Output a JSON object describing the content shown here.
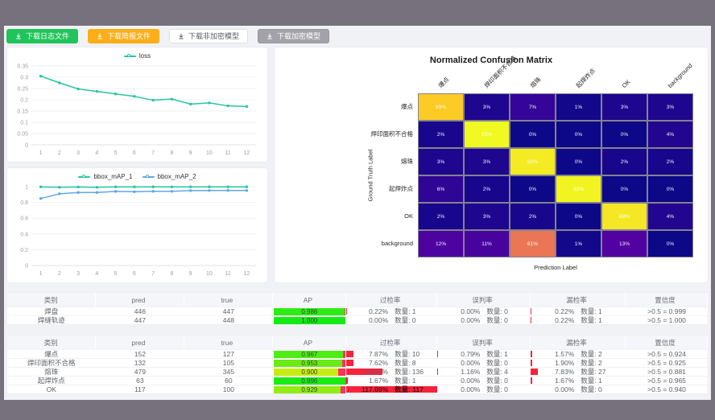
{
  "toolbar": {
    "buttons": [
      {
        "label": "下载日志文件",
        "style": "green"
      },
      {
        "label": "下载简报文件",
        "style": "orange"
      },
      {
        "label": "下载非加密模型",
        "style": "plain"
      },
      {
        "label": "下载加密模型",
        "style": "gray"
      }
    ]
  },
  "colors": {
    "teal": "#27c5a1",
    "blue": "#5fa8e5",
    "green_button": "#21c45a",
    "orange_button": "#fbae17",
    "gray_button": "#a3a2aa",
    "rate_bar_red": "#f8223d",
    "ap_remainder_red": "#ff3355"
  },
  "chart_data": [
    {
      "type": "line",
      "legend": [
        "loss"
      ],
      "x": [
        1,
        2,
        3,
        4,
        5,
        6,
        7,
        8,
        9,
        10,
        11,
        12
      ],
      "series": [
        {
          "name": "loss",
          "color": "#27c5a1",
          "values": [
            0.305,
            0.275,
            0.248,
            0.237,
            0.226,
            0.215,
            0.198,
            0.203,
            0.181,
            0.186,
            0.173,
            0.17
          ]
        }
      ],
      "ylim": [
        0,
        0.35
      ],
      "yticks": [
        0,
        0.05,
        0.1,
        0.15,
        0.2,
        0.25,
        0.3,
        0.35
      ],
      "grid": true,
      "legend_position": "top"
    },
    {
      "type": "line",
      "legend": [
        "bbox_mAP_1",
        "bbox_mAP_2"
      ],
      "x": [
        1,
        2,
        3,
        4,
        5,
        6,
        7,
        8,
        9,
        10,
        11,
        12
      ],
      "series": [
        {
          "name": "bbox_mAP_1",
          "color": "#27c5a1",
          "values": [
            0.998,
            0.992,
            0.996,
            0.992,
            0.997,
            0.998,
            0.998,
            0.997,
            0.998,
            0.998,
            0.998,
            0.998
          ]
        },
        {
          "name": "bbox_mAP_2",
          "color": "#5fa8e5",
          "values": [
            0.85,
            0.91,
            0.926,
            0.926,
            0.94,
            0.936,
            0.941,
            0.941,
            0.95,
            0.951,
            0.952,
            0.951
          ]
        }
      ],
      "ylim": [
        0,
        1
      ],
      "yticks": [
        0,
        0.2,
        0.4,
        0.6,
        0.8,
        1
      ],
      "grid": true,
      "legend_position": "top"
    },
    {
      "type": "heatmap",
      "title": "Normalized Confusion Matrix",
      "xlabel": "Prediction Label",
      "ylabel": "Ground Truth Label",
      "labels": [
        "爆点",
        "焊印面积不合格",
        "熔珠",
        "起焊炸点",
        "OK",
        "background"
      ],
      "matrix": [
        [
          83,
          3,
          7,
          1,
          3,
          3
        ],
        [
          2,
          93,
          0,
          0,
          0,
          4
        ],
        [
          3,
          3,
          90,
          0,
          2,
          2
        ],
        [
          6,
          2,
          0,
          92,
          0,
          0
        ],
        [
          2,
          3,
          2,
          0,
          89,
          4
        ],
        [
          12,
          11,
          61,
          1,
          13,
          0
        ]
      ],
      "vmax": 93,
      "colorbar_ticks": [
        0,
        20,
        40,
        60,
        80
      ],
      "colormap": "plasma"
    }
  ],
  "tables": {
    "headers": [
      "类别",
      "pred",
      "true",
      "AP",
      "过检率",
      "误判率",
      "漏检率",
      "置信度"
    ],
    "sortable": [
      false,
      true,
      true,
      true,
      true,
      true,
      true,
      true
    ],
    "count_label": "数量",
    "table1": {
      "rows": [
        {
          "category": "焊盘",
          "pred": "446",
          "true": "447",
          "ap": "0.986",
          "over_rate": {
            "pct": "0.22%",
            "count": "1"
          },
          "misjudge_rate": {
            "pct": "0.00%",
            "count": "0"
          },
          "miss_rate": {
            "pct": "0.22%",
            "count": "1"
          },
          "confidence": ">0.5 = 0.999"
        },
        {
          "category": "焊缝轨迹",
          "pred": "447",
          "true": "448",
          "ap": "1.000",
          "over_rate": {
            "pct": "0.00%",
            "count": "0"
          },
          "misjudge_rate": {
            "pct": "0.00%",
            "count": "0"
          },
          "miss_rate": {
            "pct": "0.22%",
            "count": "1"
          },
          "confidence": ">0.5 = 1.000"
        }
      ]
    },
    "table2": {
      "rows": [
        {
          "category": "爆点",
          "pred": "152",
          "true": "127",
          "ap": "0.967",
          "over_rate": {
            "pct": "7.87%",
            "count": "10"
          },
          "misjudge_rate": {
            "pct": "0.79%",
            "count": "1"
          },
          "miss_rate": {
            "pct": "1.57%",
            "count": "2"
          },
          "confidence": ">0.5 = 0.924"
        },
        {
          "category": "焊印面积不合格",
          "pred": "132",
          "true": "105",
          "ap": "0.953",
          "over_rate": {
            "pct": "7.62%",
            "count": "8"
          },
          "misjudge_rate": {
            "pct": "0.00%",
            "count": "0"
          },
          "miss_rate": {
            "pct": "1.90%",
            "count": "2"
          },
          "confidence": ">0.5 = 0.925"
        },
        {
          "category": "熔珠",
          "pred": "479",
          "true": "345",
          "ap": "0.900",
          "over_rate": {
            "pct": "39.42%",
            "count": "136"
          },
          "misjudge_rate": {
            "pct": "1.16%",
            "count": "4"
          },
          "miss_rate": {
            "pct": "7.83%",
            "count": "27"
          },
          "confidence": ">0.5 = 0.881"
        },
        {
          "category": "起焊炸点",
          "pred": "63",
          "true": "60",
          "ap": "0.996",
          "over_rate": {
            "pct": "1.67%",
            "count": "1"
          },
          "misjudge_rate": {
            "pct": "0.00%",
            "count": "0"
          },
          "miss_rate": {
            "pct": "1.67%",
            "count": "1"
          },
          "confidence": ">0.5 = 0.965"
        },
        {
          "category": "OK",
          "pred": "117",
          "true": "100",
          "ap": "0.929",
          "over_rate": {
            "pct": "117.00%",
            "count": "117"
          },
          "misjudge_rate": {
            "pct": "0.00%",
            "count": "0"
          },
          "miss_rate": {
            "pct": "0.00%",
            "count": "0"
          },
          "confidence": ">0.5 = 0.940"
        }
      ]
    }
  }
}
